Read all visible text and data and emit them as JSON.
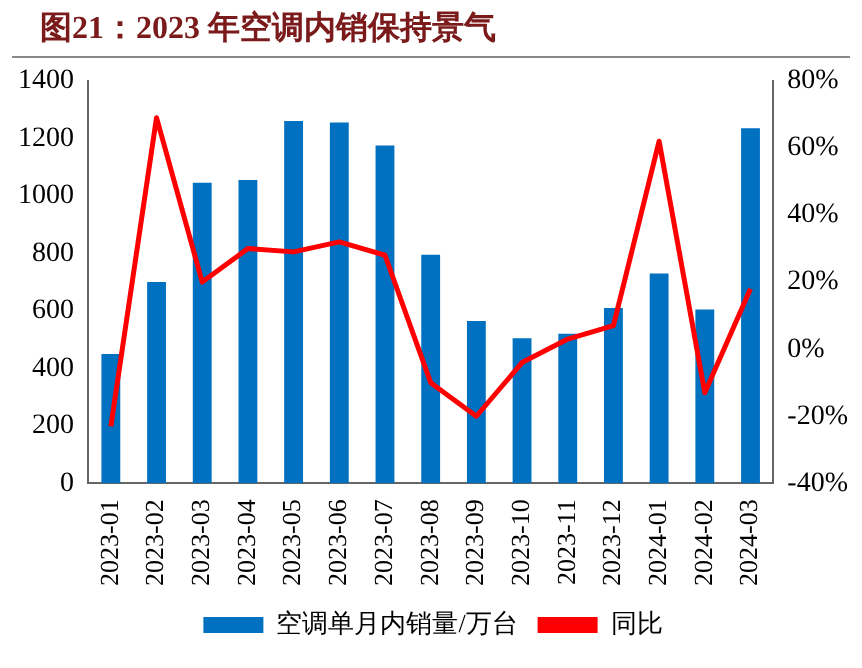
{
  "chart_data": {
    "type": "bar",
    "title": "图21：2023 年空调内销保持景气",
    "categories": [
      "2023-01",
      "2023-02",
      "2023-03",
      "2023-04",
      "2023-05",
      "2023-06",
      "2023-07",
      "2023-08",
      "2023-09",
      "2023-10",
      "2023-11",
      "2023-12",
      "2024-01",
      "2024-02",
      "2024-03"
    ],
    "series": [
      {
        "name": "空调单月内销量/万台",
        "color": "#0070c0",
        "values": [
          450,
          700,
          1045,
          1055,
          1260,
          1255,
          1175,
          795,
          565,
          505,
          520,
          610,
          730,
          605,
          1235
        ]
      },
      {
        "name": "同比",
        "type": "line",
        "axis": "y2",
        "color": "#ff0000",
        "values": [
          -23,
          69,
          20,
          30,
          29,
          32,
          28,
          -10,
          -20,
          -4,
          3,
          7,
          62,
          -13,
          18
        ]
      }
    ],
    "ylim": [
      0,
      1400
    ],
    "yticks": [
      0,
      200,
      400,
      600,
      800,
      1000,
      1200,
      1400
    ],
    "y2lim": [
      -40,
      80
    ],
    "y2ticks": [
      {
        "value": -40,
        "label": "-40%"
      },
      {
        "value": -20,
        "label": "-20%"
      },
      {
        "value": 0,
        "label": "0%"
      },
      {
        "value": 20,
        "label": "20%"
      },
      {
        "value": 40,
        "label": "40%"
      },
      {
        "value": 60,
        "label": "60%"
      },
      {
        "value": 80,
        "label": "80%"
      }
    ],
    "grid": false,
    "legend": "bottom",
    "marker": "none",
    "line_style": "solid"
  }
}
